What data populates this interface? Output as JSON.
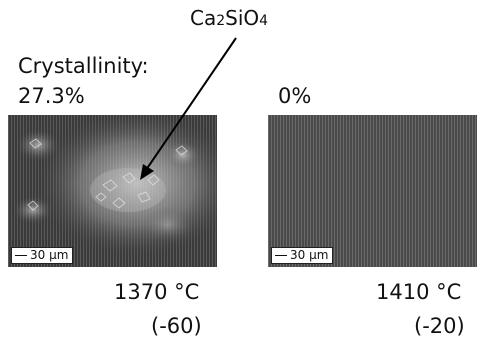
{
  "annotation": {
    "phase_prefix": "Ca",
    "phase_sub1": "2",
    "phase_mid": "SiO",
    "phase_sub2": "4"
  },
  "left_panel": {
    "crystallinity_label": "Crystallinity:",
    "crystallinity_value": "27.3%",
    "scale_bar": "30 µm",
    "temperature": "1370 °C",
    "offset": "(-60)"
  },
  "right_panel": {
    "crystallinity_value": "0%",
    "scale_bar": "30 µm",
    "temperature": "1410 °C",
    "offset": "(-20)"
  }
}
